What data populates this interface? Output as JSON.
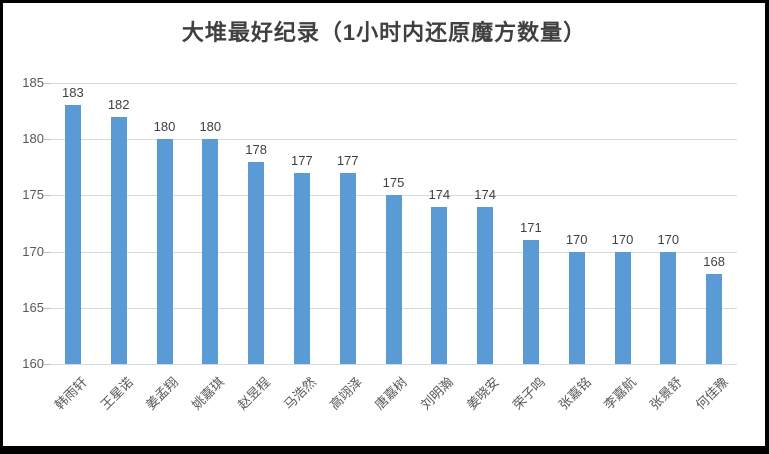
{
  "chart_data": {
    "type": "bar",
    "title": "大堆最好纪录（1小时内还原魔方数量）",
    "categories": [
      "韩雨轩",
      "王星诺",
      "姜孟翔",
      "姚嘉琪",
      "赵昱程",
      "马浩然",
      "高翊泽",
      "唐嘉树",
      "刘明瀚",
      "姜晓安",
      "荣子鸣",
      "张嘉铭",
      "李嘉航",
      "张景舒",
      "何佳豫"
    ],
    "values": [
      183,
      182,
      180,
      180,
      178,
      177,
      177,
      175,
      174,
      174,
      171,
      170,
      170,
      170,
      168
    ],
    "xlabel": "",
    "ylabel": "",
    "ylim": [
      160,
      185
    ],
    "yticks": [
      160,
      165,
      170,
      175,
      180,
      185
    ],
    "grid": true,
    "legend": "none",
    "data_labels": true,
    "colors": {
      "bar": "#5b9bd5",
      "gridline": "#d9d9d9",
      "tick": "#bfbfbf",
      "axis_text": "#595959",
      "data_label": "#404040",
      "title": "#404040",
      "frame": "#000000",
      "background": "#ffffff"
    }
  }
}
